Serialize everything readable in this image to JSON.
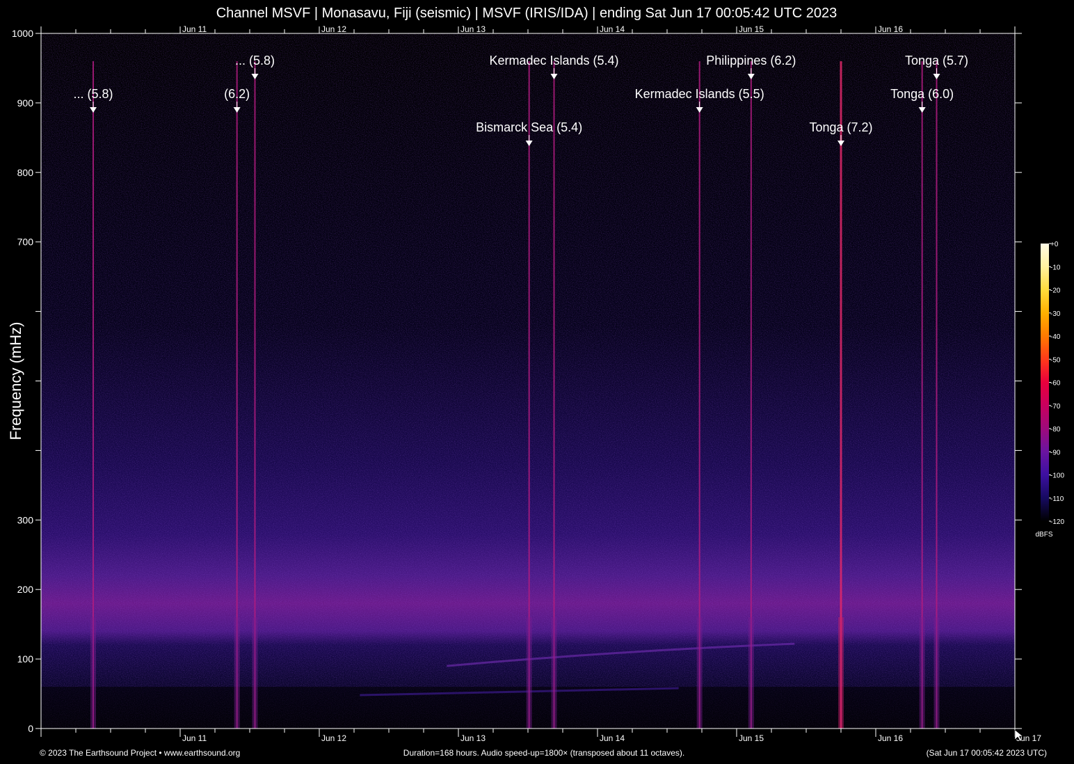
{
  "chart_data": {
    "type": "heatmap",
    "title": "Channel MSVF | Monasavu, Fiji (seismic) | MSVF (IRIS/IDA) | ending Sat Jun 17 00:05:42 UTC 2023",
    "xlabel": "",
    "ylabel": "Frequency (mHz)",
    "xlim": [
      0,
      168
    ],
    "ylim": [
      0,
      1000
    ],
    "y_ticks": [
      0,
      100,
      200,
      300,
      400,
      500,
      600,
      700,
      800,
      900,
      1000
    ],
    "y_tick_labels": [
      "0",
      "100",
      "200",
      "300",
      "",
      "",
      "",
      "700",
      "800",
      "900",
      "1000"
    ],
    "x_day_ticks": [
      {
        "label": "Jun 11",
        "hour": 24
      },
      {
        "label": "Jun 12",
        "hour": 48
      },
      {
        "label": "Jun 13",
        "hour": 72
      },
      {
        "label": "Jun 14",
        "hour": 96
      },
      {
        "label": "Jun 15",
        "hour": 120
      },
      {
        "label": "Jun 16",
        "hour": 144
      }
    ],
    "x_end_label": "Jun 17",
    "events": [
      {
        "label": "... (5.8)",
        "hour": 9.0,
        "row": 2
      },
      {
        "label": "... (5.8)",
        "hour": 36.9,
        "row": 1
      },
      {
        "label": "(6.2)",
        "hour": 33.8,
        "row": 2
      },
      {
        "label": "Kermadec Islands (5.4)",
        "hour": 88.5,
        "row": 1
      },
      {
        "label": "Bismarck Sea (5.4)",
        "hour": 84.2,
        "row": 3
      },
      {
        "label": "Kermadec Islands (5.5)",
        "hour": 113.6,
        "row": 2
      },
      {
        "label": "Philippines (6.2)",
        "hour": 122.5,
        "row": 1
      },
      {
        "label": "Tonga (7.2)",
        "hour": 138.0,
        "row": 3
      },
      {
        "label": "Tonga (6.0)",
        "hour": 152.0,
        "row": 2
      },
      {
        "label": "Tonga (5.7)",
        "hour": 154.5,
        "row": 1
      }
    ],
    "colorbar": {
      "unit": "dBFS",
      "ticks": [
        0,
        -10,
        -20,
        -30,
        -40,
        -50,
        -60,
        -70,
        -80,
        -90,
        -100,
        -110,
        -120
      ],
      "tick_labels": [
        "+0",
        "-10",
        "-20",
        "-30",
        "-40",
        "-50",
        "-60",
        "-70",
        "-80",
        "-90",
        "-100",
        "-110",
        "-120"
      ],
      "colors": [
        "#fffbe6",
        "#fff2a0",
        "#ffdc3c",
        "#ffb000",
        "#ff7a00",
        "#ff3a1a",
        "#e8003c",
        "#c8005e",
        "#9e0a7c",
        "#6a14a0",
        "#3c10a0",
        "#160a60",
        "#000000"
      ]
    }
  },
  "footer": {
    "left": "© 2023 The Earthsound Project • www.earthsound.org",
    "center": "Duration=168 hours. Audio speed-up=1800× (transposed about 11 octaves).",
    "right": "(Sat Jun 17 00:05:42 2023 UTC)"
  }
}
